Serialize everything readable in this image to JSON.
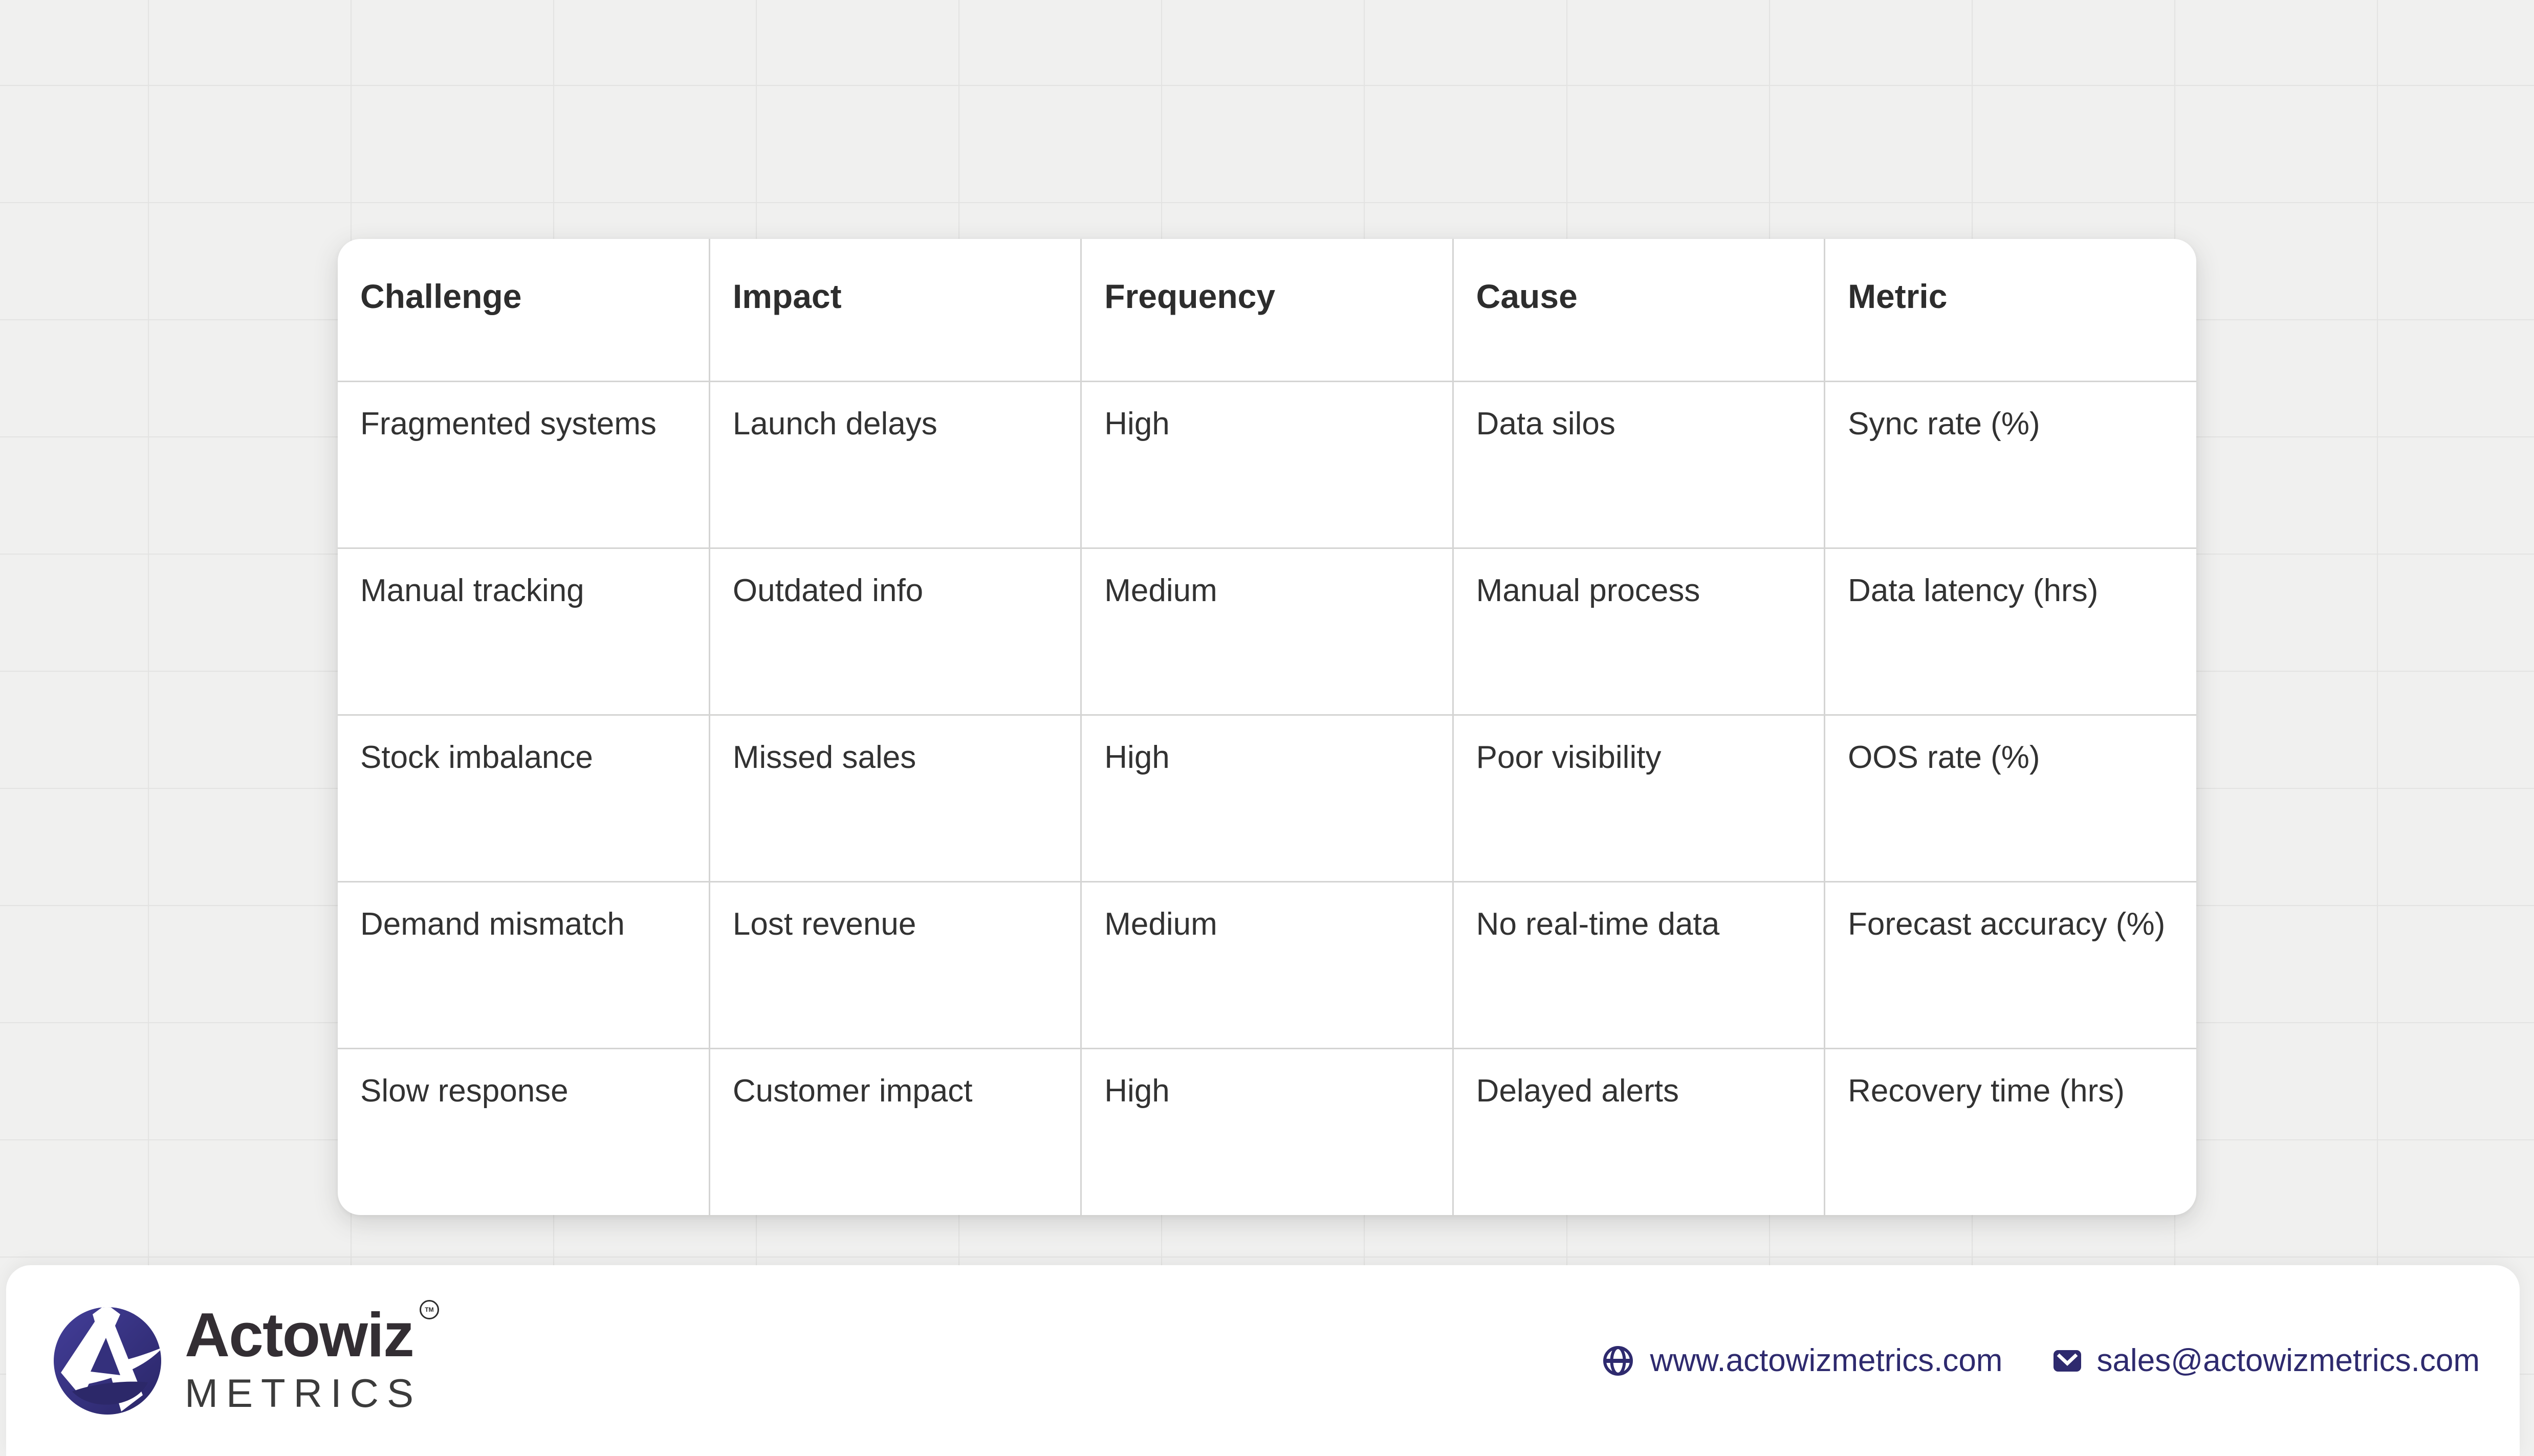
{
  "table": {
    "columns": [
      "Challenge",
      "Impact",
      "Frequency",
      "Cause",
      "Metric"
    ],
    "rows": [
      [
        "Fragmented systems",
        "Launch delays",
        "High",
        "Data silos",
        "Sync rate (%)"
      ],
      [
        "Manual tracking",
        "Outdated info",
        "Medium",
        "Manual process",
        "Data latency (hrs)"
      ],
      [
        "Stock imbalance",
        "Missed sales",
        "High",
        "Poor visibility",
        "OOS rate (%)"
      ],
      [
        "Demand mismatch",
        "Lost revenue",
        "Medium",
        "No real-time data",
        "Forecast accuracy (%)"
      ],
      [
        "Slow response",
        "Customer impact",
        "High",
        "Delayed alerts",
        "Recovery time (hrs)"
      ]
    ]
  },
  "footer": {
    "brand": {
      "name": "Actowiz",
      "trademark": "TM",
      "sub": "METRICS"
    },
    "website": "www.actowizmetrics.com",
    "email": "sales@actowizmetrics.com"
  },
  "icons": {
    "website": "globe-icon",
    "email": "mail-icon",
    "brand": "actowiz-a-mark"
  },
  "colors": {
    "accent_navy": "#2e2a6e",
    "logo_gradient_top": "#433e99",
    "logo_gradient_bottom": "#2a2667",
    "card_bg": "#ffffff",
    "page_bg": "#f0f0ef",
    "grid_line": "#e3e3e2",
    "table_border": "#d4d4d3",
    "header_text": "#2d2d2d",
    "cell_text": "#323232"
  }
}
